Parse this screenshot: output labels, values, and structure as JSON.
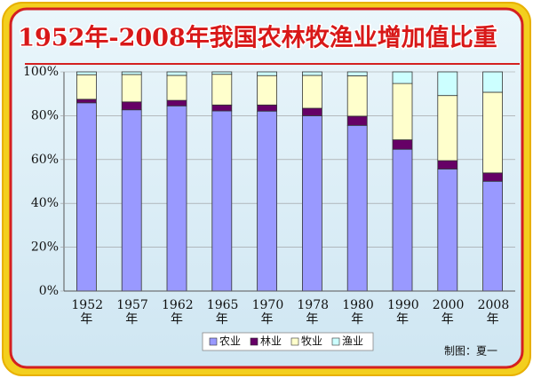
{
  "chart_data": {
    "type": "stacked_bar",
    "title": "1952年-2008年我国农林牧渔业增加值比重",
    "categories": [
      "1952年",
      "1957年",
      "1962年",
      "1965年",
      "1970年",
      "1978年",
      "1980年",
      "1990年",
      "2000年",
      "2008年"
    ],
    "series": [
      {
        "name": "农业",
        "color": "#9999ff",
        "values": [
          85.9,
          82.7,
          84.5,
          82.2,
          82.1,
          80.0,
          75.6,
          64.7,
          55.7,
          50.1
        ]
      },
      {
        "name": "林业",
        "color": "#660066",
        "values": [
          1.6,
          3.6,
          2.5,
          2.7,
          2.8,
          3.4,
          4.2,
          4.3,
          3.8,
          3.8
        ]
      },
      {
        "name": "牧业",
        "color": "#ffffcc",
        "values": [
          11.2,
          12.5,
          11.4,
          14.0,
          13.4,
          15.0,
          18.4,
          25.7,
          29.7,
          36.8
        ]
      },
      {
        "name": "渔业",
        "color": "#ccffff",
        "values": [
          1.3,
          1.2,
          1.6,
          1.1,
          1.7,
          1.6,
          1.8,
          5.3,
          10.8,
          9.3
        ]
      }
    ],
    "ylim": [
      0,
      100
    ],
    "yticks": [
      {
        "value": 0,
        "label": "0%"
      },
      {
        "value": 20,
        "label": "20%"
      },
      {
        "value": 40,
        "label": "40%"
      },
      {
        "value": 60,
        "label": "60%"
      },
      {
        "value": 80,
        "label": "80%"
      },
      {
        "value": 100,
        "label": "100%"
      }
    ],
    "legend": "bottom",
    "annotation": "制图：夏一"
  }
}
